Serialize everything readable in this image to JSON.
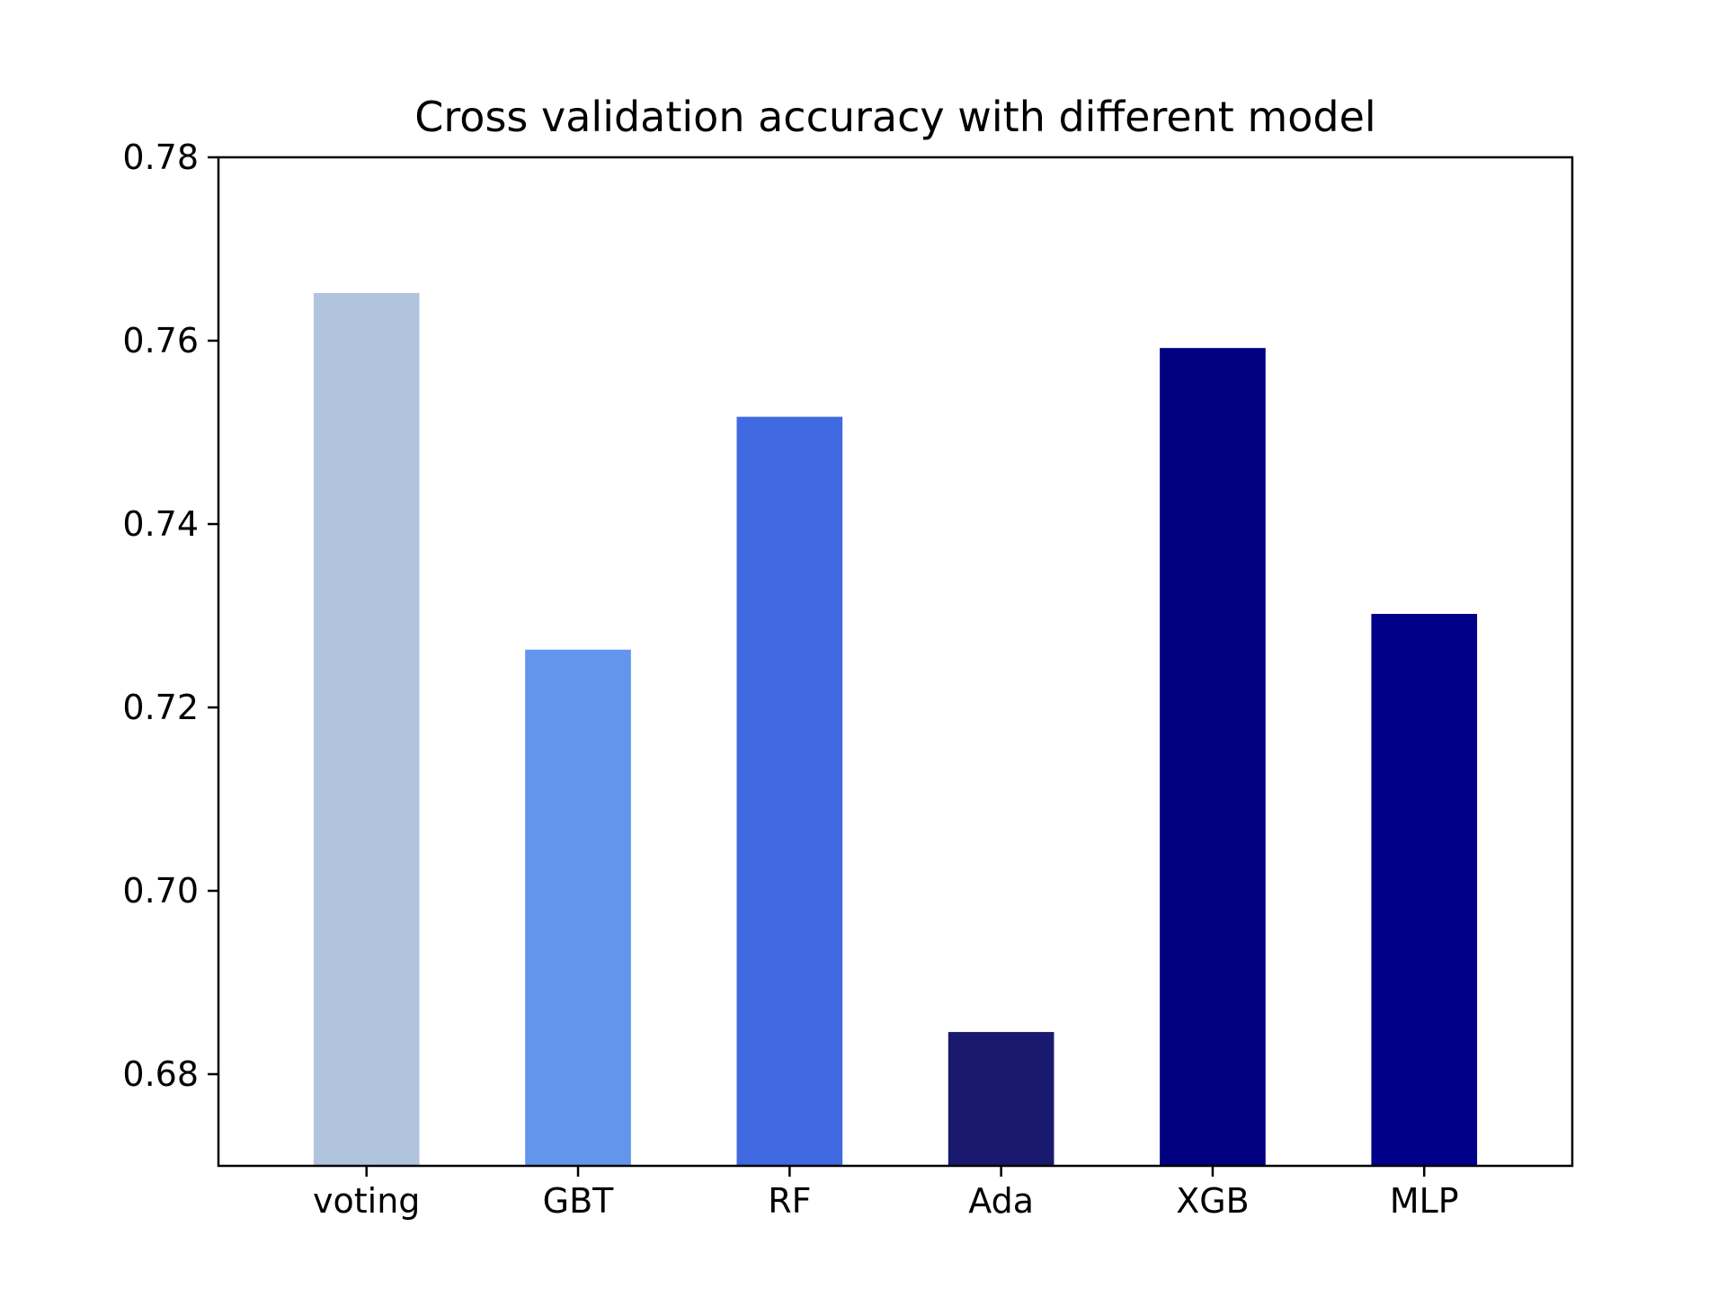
{
  "chart_data": {
    "type": "bar",
    "title": "Cross validation accuracy with different model",
    "xlabel": "",
    "ylabel": "",
    "categories": [
      "voting",
      "GBT",
      "RF",
      "Ada",
      "XGB",
      "MLP"
    ],
    "values": [
      0.7652,
      0.7263,
      0.7517,
      0.6846,
      0.7592,
      0.7302
    ],
    "colors": [
      "#b0c4de",
      "#6495ed",
      "#4169e1",
      "#191970",
      "#000080",
      "#00008b"
    ],
    "ylim": [
      0.67,
      0.78
    ],
    "yticks": [
      "0.68",
      "0.70",
      "0.72",
      "0.74",
      "0.76",
      "0.78"
    ],
    "grid": false,
    "legend": "none"
  }
}
